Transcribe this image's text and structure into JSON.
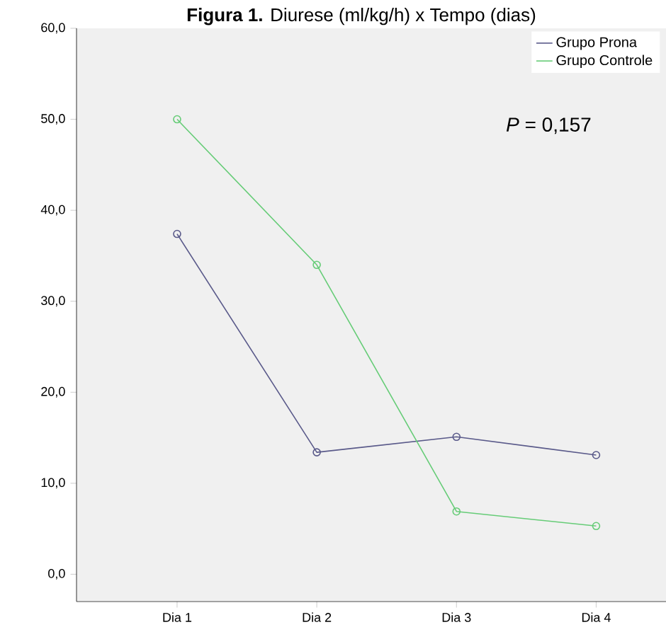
{
  "chart_data": {
    "type": "line",
    "title": "**Figura 1.** Diurese (ml/kg/h) x Tempo (dias)",
    "categories": [
      "Dia 1",
      "Dia 2",
      "Dia 3",
      "Dia 4"
    ],
    "series": [
      {
        "name": "Grupo Prona",
        "color": "#5a5a8a",
        "values": [
          37.4,
          13.4,
          15.1,
          13.1
        ]
      },
      {
        "name": "Grupo Controle",
        "color": "#66cc77",
        "values": [
          50.0,
          34.0,
          6.9,
          5.3
        ]
      }
    ],
    "ylim": [
      -3,
      60
    ],
    "yticks": [
      {
        "value": 0,
        "label": "0,0"
      },
      {
        "value": 10,
        "label": "10,0"
      },
      {
        "value": 20,
        "label": "20,0"
      },
      {
        "value": 30,
        "label": "30,0"
      },
      {
        "value": 40,
        "label": "40,0"
      },
      {
        "value": 50,
        "label": "50,0"
      },
      {
        "value": 60,
        "label": "60,0"
      }
    ],
    "annotations": [
      "*P* = 0,157"
    ],
    "legend": "top right",
    "marker": "circle",
    "line_style": "solid",
    "grid": false
  }
}
